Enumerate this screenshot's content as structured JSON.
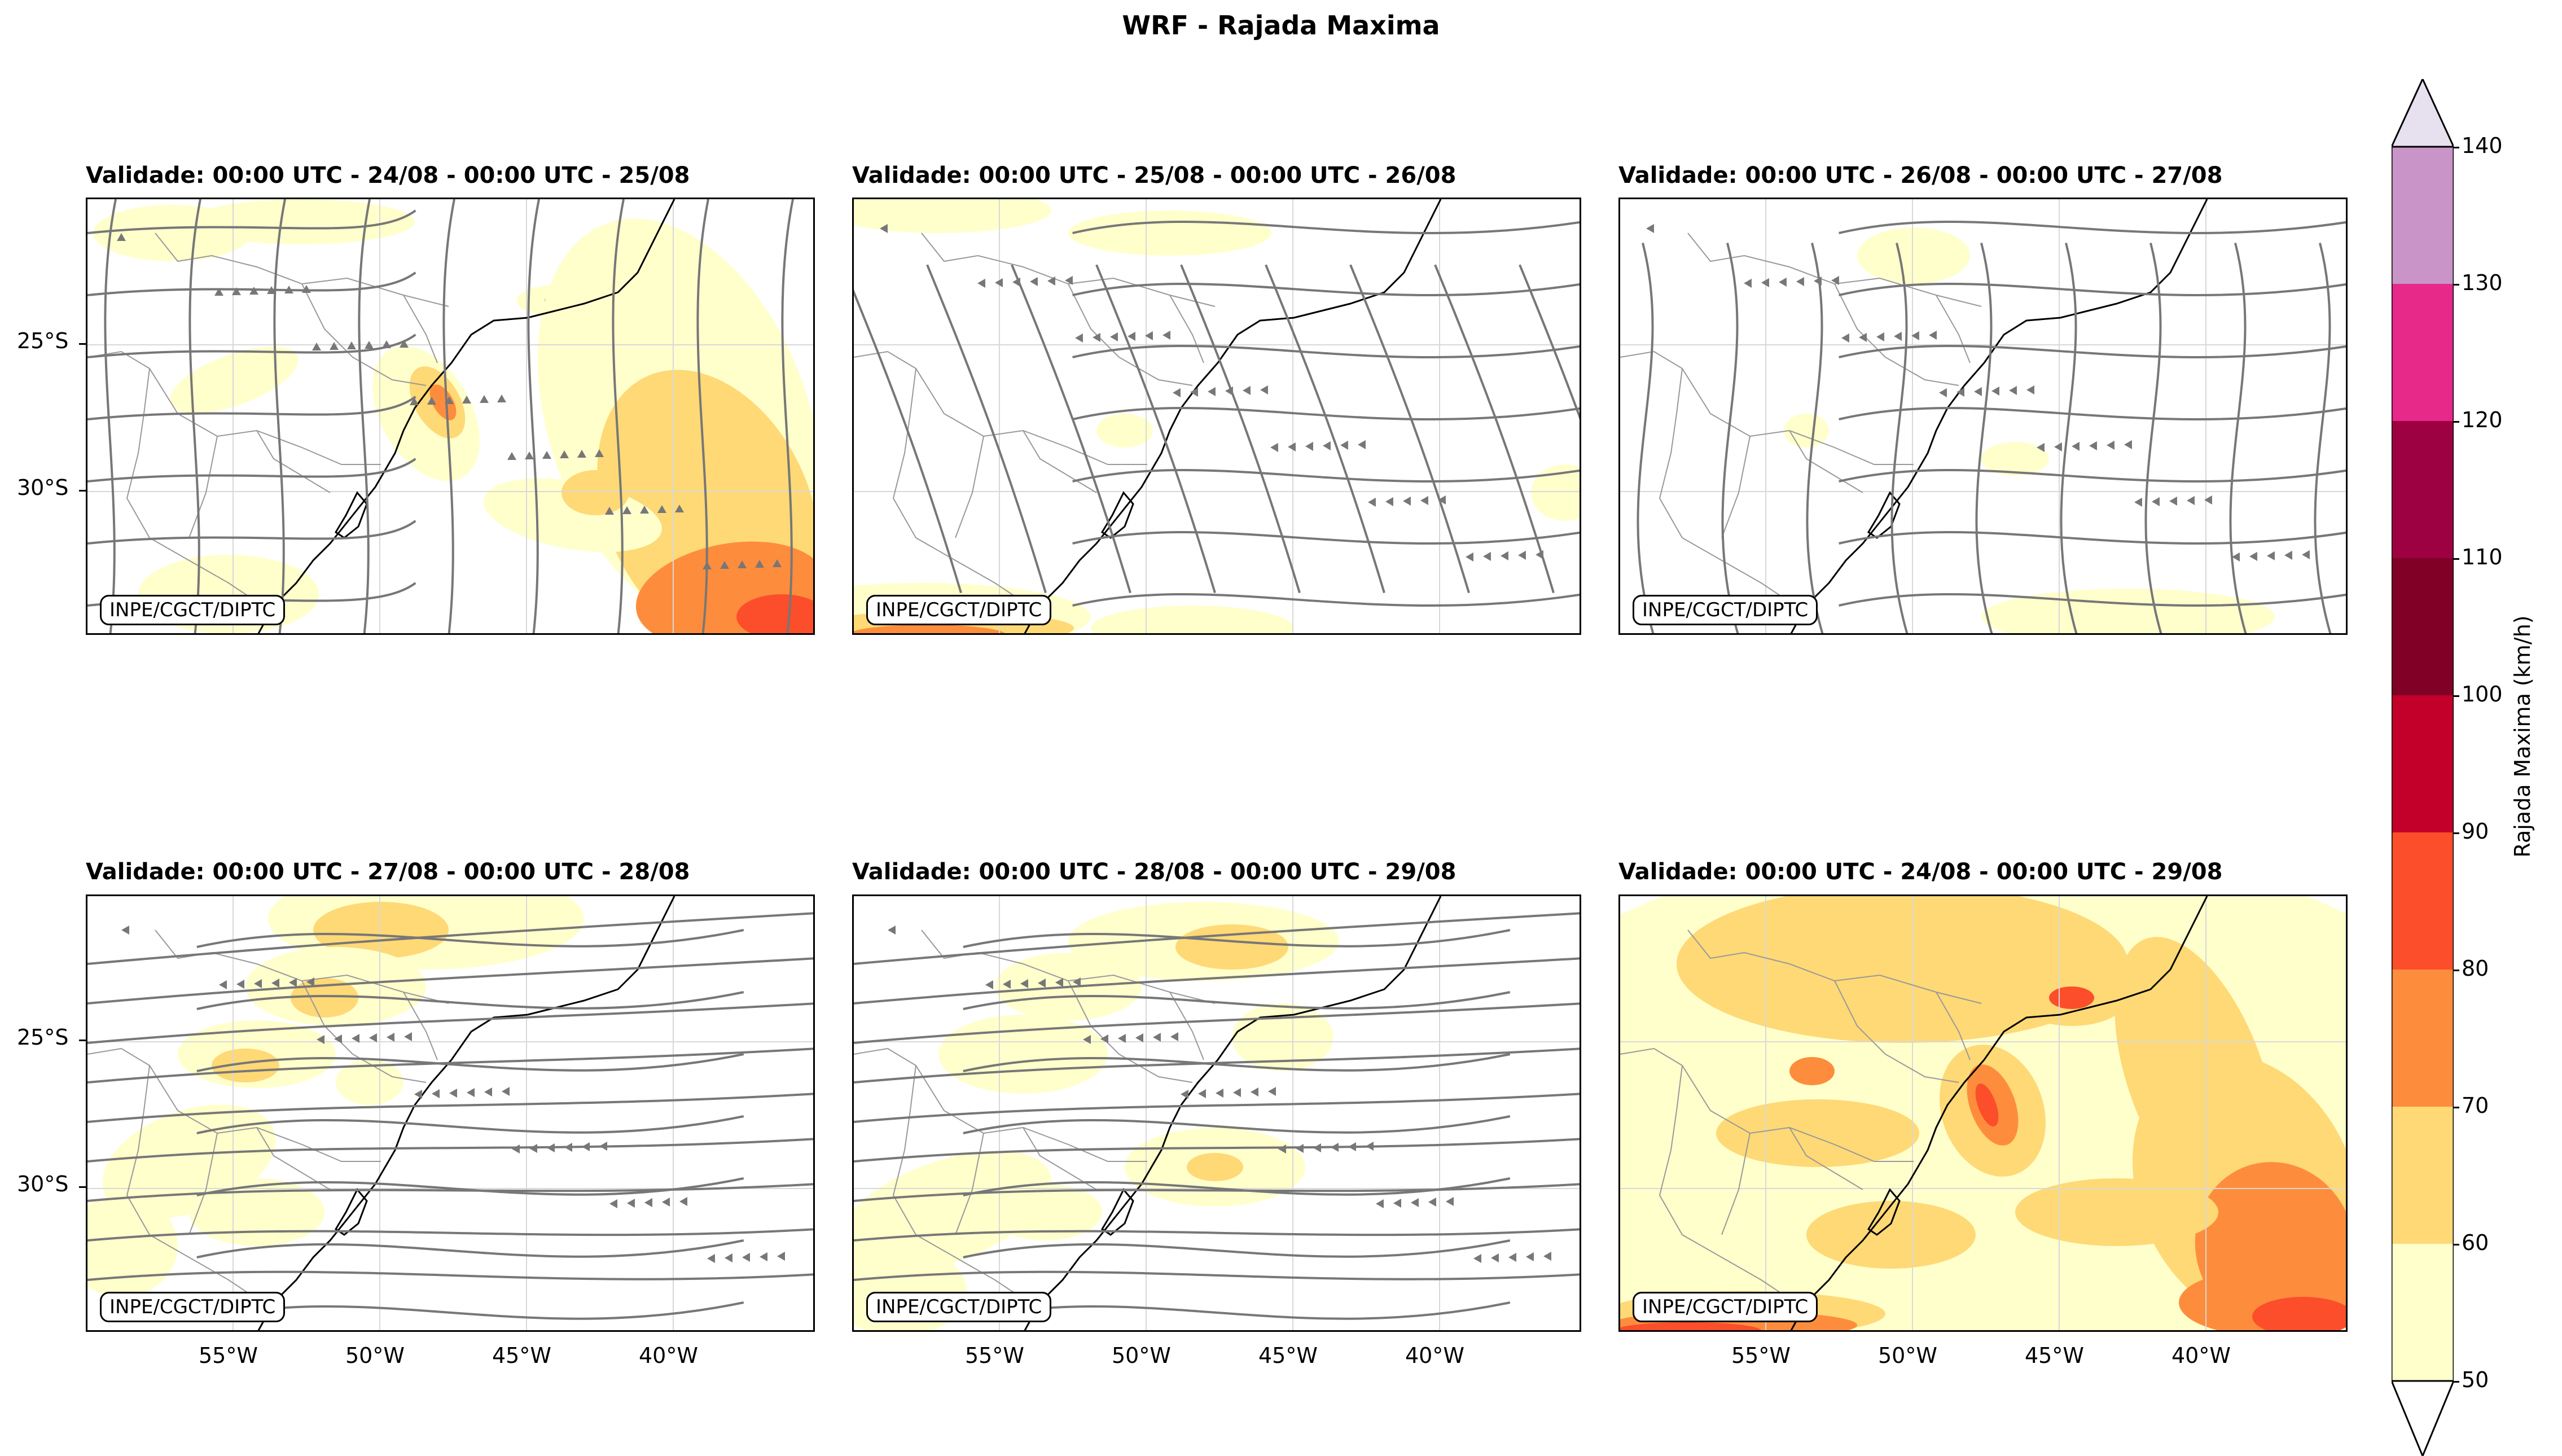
{
  "title": "WRF - Rajada Maxima",
  "credit": "INPE/CGCT/DIPTC",
  "panels": [
    {
      "title": "Validade: 00:00 UTC - 24/08 - 00:00 UTC - 25/08",
      "pattern": "day1"
    },
    {
      "title": "Validade: 00:00 UTC - 25/08 - 00:00 UTC - 26/08",
      "pattern": "day2"
    },
    {
      "title": "Validade: 00:00 UTC - 26/08 - 00:00 UTC - 27/08",
      "pattern": "day3"
    },
    {
      "title": "Validade: 00:00 UTC - 27/08 - 00:00 UTC - 28/08",
      "pattern": "day4"
    },
    {
      "title": "Validade: 00:00 UTC - 28/08 - 00:00 UTC - 29/08",
      "pattern": "day5"
    },
    {
      "title": "Validade: 00:00 UTC - 24/08 - 00:00 UTC - 29/08",
      "pattern": "accum"
    }
  ],
  "axes": {
    "lat_ticks": [
      "25°S",
      "30°S"
    ],
    "lon_ticks": [
      "55°W",
      "50°W",
      "45°W",
      "40°W"
    ]
  },
  "colorbar": {
    "label": "Rajada Maxima (km/h)",
    "ticks": [
      "50",
      "60",
      "70",
      "80",
      "90",
      "100",
      "110",
      "120",
      "130",
      "140"
    ],
    "colors": [
      "#ffffcc",
      "#fed976",
      "#fd8d3c",
      "#fc4e2a",
      "#c2002a",
      "#800026",
      "#9e0142",
      "#e7298a",
      "#c994c7",
      "#e7e1ef"
    ],
    "extend": "both"
  },
  "style": {
    "streamline_color": "#777777",
    "coast_color": "#000000",
    "border_color": "#999999",
    "grid_color": "#d8d8d8"
  }
}
